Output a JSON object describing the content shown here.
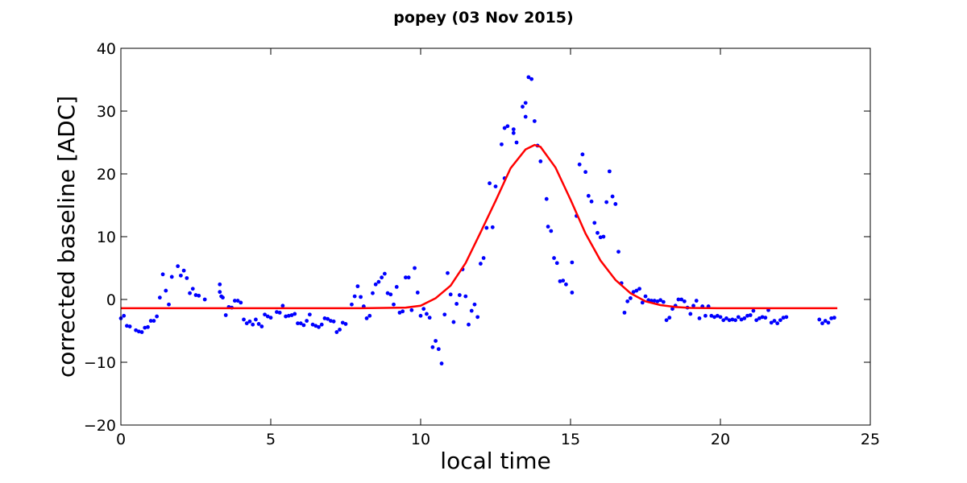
{
  "chart_data": {
    "type": "scatter",
    "title": "popey (03 Nov 2015)",
    "xlabel": "local time",
    "ylabel": "corrected baseline [ADC]",
    "xlim": [
      0,
      25
    ],
    "ylim": [
      -20,
      40
    ],
    "xticks": [
      0,
      5,
      10,
      15,
      20,
      25
    ],
    "yticks": [
      -20,
      -10,
      0,
      10,
      20,
      30,
      40
    ],
    "xtick_labels": [
      "0",
      "5",
      "10",
      "15",
      "20",
      "25"
    ],
    "ytick_labels": [
      "−20",
      "−10",
      "0",
      "10",
      "20",
      "30",
      "40"
    ],
    "grid": false,
    "series": [
      {
        "kind": "points",
        "color": "#0000ff",
        "points": [
          [
            0.0,
            -3.0
          ],
          [
            0.1,
            -2.6
          ],
          [
            0.2,
            -4.2
          ],
          [
            0.3,
            -4.3
          ],
          [
            0.5,
            -4.9
          ],
          [
            0.6,
            -5.1
          ],
          [
            0.7,
            -5.2
          ],
          [
            0.8,
            -4.5
          ],
          [
            0.9,
            -4.4
          ],
          [
            1.0,
            -3.4
          ],
          [
            1.1,
            -3.4
          ],
          [
            1.2,
            -2.7
          ],
          [
            1.3,
            0.3
          ],
          [
            1.4,
            4.0
          ],
          [
            1.5,
            1.4
          ],
          [
            1.6,
            -0.8
          ],
          [
            1.7,
            3.6
          ],
          [
            1.9,
            5.3
          ],
          [
            2.0,
            3.8
          ],
          [
            2.1,
            4.6
          ],
          [
            2.2,
            3.4
          ],
          [
            2.3,
            1.0
          ],
          [
            2.4,
            1.7
          ],
          [
            2.5,
            0.7
          ],
          [
            2.6,
            0.6
          ],
          [
            2.8,
            0.0
          ],
          [
            3.3,
            2.4
          ],
          [
            3.3,
            1.2
          ],
          [
            3.35,
            0.5
          ],
          [
            3.4,
            0.3
          ],
          [
            3.5,
            -2.5
          ],
          [
            3.6,
            -1.2
          ],
          [
            3.7,
            -1.3
          ],
          [
            3.8,
            -0.2
          ],
          [
            3.9,
            -0.2
          ],
          [
            4.0,
            -0.5
          ],
          [
            4.1,
            -3.2
          ],
          [
            4.2,
            -3.8
          ],
          [
            4.3,
            -3.5
          ],
          [
            4.4,
            -4.0
          ],
          [
            4.5,
            -3.2
          ],
          [
            4.6,
            -3.9
          ],
          [
            4.7,
            -4.3
          ],
          [
            4.8,
            -2.4
          ],
          [
            4.9,
            -2.7
          ],
          [
            5.0,
            -2.9
          ],
          [
            5.2,
            -2.0
          ],
          [
            5.3,
            -2.1
          ],
          [
            5.4,
            -1.0
          ],
          [
            5.5,
            -2.7
          ],
          [
            5.6,
            -2.6
          ],
          [
            5.7,
            -2.5
          ],
          [
            5.8,
            -2.3
          ],
          [
            5.9,
            -3.8
          ],
          [
            6.0,
            -3.8
          ],
          [
            6.1,
            -4.1
          ],
          [
            6.2,
            -3.4
          ],
          [
            6.3,
            -2.4
          ],
          [
            6.4,
            -4.0
          ],
          [
            6.5,
            -4.2
          ],
          [
            6.6,
            -4.4
          ],
          [
            6.7,
            -4.0
          ],
          [
            6.8,
            -3.0
          ],
          [
            6.9,
            -3.1
          ],
          [
            7.0,
            -3.4
          ],
          [
            7.1,
            -3.5
          ],
          [
            7.2,
            -5.2
          ],
          [
            7.3,
            -4.8
          ],
          [
            7.4,
            -3.7
          ],
          [
            7.5,
            -3.9
          ],
          [
            7.7,
            -0.8
          ],
          [
            7.8,
            0.5
          ],
          [
            7.9,
            2.1
          ],
          [
            8.0,
            0.4
          ],
          [
            8.1,
            -1.1
          ],
          [
            8.2,
            -3.0
          ],
          [
            8.3,
            -2.6
          ],
          [
            8.4,
            1.0
          ],
          [
            8.5,
            2.4
          ],
          [
            8.6,
            2.8
          ],
          [
            8.7,
            3.5
          ],
          [
            8.8,
            4.1
          ],
          [
            8.9,
            1.0
          ],
          [
            9.0,
            0.8
          ],
          [
            9.1,
            -0.8
          ],
          [
            9.2,
            2.0
          ],
          [
            9.3,
            -2.1
          ],
          [
            9.4,
            -1.9
          ],
          [
            9.5,
            3.5
          ],
          [
            9.6,
            3.5
          ],
          [
            9.7,
            -1.7
          ],
          [
            9.8,
            5.0
          ],
          [
            9.9,
            1.1
          ],
          [
            10.0,
            -2.6
          ],
          [
            10.1,
            -1.5
          ],
          [
            10.2,
            -2.3
          ],
          [
            10.3,
            -2.9
          ],
          [
            10.4,
            -7.6
          ],
          [
            10.5,
            -6.6
          ],
          [
            10.6,
            -7.9
          ],
          [
            10.7,
            -10.2
          ],
          [
            10.8,
            -2.4
          ],
          [
            10.9,
            4.2
          ],
          [
            11.0,
            0.8
          ],
          [
            11.1,
            -3.6
          ],
          [
            11.2,
            -0.7
          ],
          [
            11.3,
            0.7
          ],
          [
            11.4,
            4.8
          ],
          [
            11.5,
            0.5
          ],
          [
            11.6,
            -4.0
          ],
          [
            11.7,
            -1.8
          ],
          [
            11.8,
            -0.8
          ],
          [
            11.9,
            -2.8
          ],
          [
            12.0,
            5.7
          ],
          [
            12.1,
            6.6
          ],
          [
            12.2,
            11.4
          ],
          [
            12.3,
            18.5
          ],
          [
            12.4,
            11.5
          ],
          [
            12.5,
            18.0
          ],
          [
            12.7,
            24.7
          ],
          [
            12.8,
            19.3
          ],
          [
            12.8,
            27.3
          ],
          [
            12.9,
            27.6
          ],
          [
            13.1,
            27.1
          ],
          [
            13.1,
            26.5
          ],
          [
            13.2,
            25.0
          ],
          [
            13.4,
            30.7
          ],
          [
            13.5,
            29.1
          ],
          [
            13.5,
            31.3
          ],
          [
            13.6,
            35.4
          ],
          [
            13.7,
            35.1
          ],
          [
            13.8,
            28.4
          ],
          [
            13.9,
            24.5
          ],
          [
            14.0,
            22.0
          ],
          [
            14.2,
            16.0
          ],
          [
            14.25,
            11.6
          ],
          [
            14.35,
            10.9
          ],
          [
            14.45,
            6.6
          ],
          [
            14.55,
            5.8
          ],
          [
            14.65,
            2.9
          ],
          [
            14.75,
            3.0
          ],
          [
            14.85,
            2.4
          ],
          [
            15.05,
            1.1
          ],
          [
            15.05,
            5.9
          ],
          [
            15.2,
            13.3
          ],
          [
            15.3,
            21.5
          ],
          [
            15.4,
            23.1
          ],
          [
            15.5,
            20.3
          ],
          [
            15.6,
            16.5
          ],
          [
            15.7,
            15.6
          ],
          [
            15.8,
            12.2
          ],
          [
            15.9,
            10.6
          ],
          [
            16.0,
            9.9
          ],
          [
            16.1,
            10.0
          ],
          [
            16.2,
            15.5
          ],
          [
            16.3,
            20.4
          ],
          [
            16.4,
            16.4
          ],
          [
            16.5,
            15.2
          ],
          [
            16.6,
            7.6
          ],
          [
            16.7,
            2.6
          ],
          [
            16.8,
            -2.1
          ],
          [
            16.9,
            -0.3
          ],
          [
            17.0,
            0.2
          ],
          [
            17.1,
            1.2
          ],
          [
            17.2,
            1.4
          ],
          [
            17.3,
            1.7
          ],
          [
            17.4,
            -0.5
          ],
          [
            17.5,
            0.5
          ],
          [
            17.6,
            -0.1
          ],
          [
            17.7,
            -0.2
          ],
          [
            17.8,
            -0.2
          ],
          [
            17.9,
            -0.3
          ],
          [
            18.0,
            -0.1
          ],
          [
            18.1,
            -0.4
          ],
          [
            18.2,
            -3.3
          ],
          [
            18.3,
            -2.9
          ],
          [
            18.4,
            -1.5
          ],
          [
            18.5,
            -1.0
          ],
          [
            18.6,
            0.0
          ],
          [
            18.7,
            0.0
          ],
          [
            18.8,
            -0.3
          ],
          [
            18.9,
            -1.3
          ],
          [
            19.0,
            -2.3
          ],
          [
            19.1,
            -1.0
          ],
          [
            19.2,
            -0.2
          ],
          [
            19.3,
            -3.0
          ],
          [
            19.4,
            -1.1
          ],
          [
            19.5,
            -2.6
          ],
          [
            19.6,
            -1.1
          ],
          [
            19.7,
            -2.6
          ],
          [
            19.8,
            -2.8
          ],
          [
            19.9,
            -2.6
          ],
          [
            20.0,
            -2.8
          ],
          [
            20.1,
            -3.3
          ],
          [
            20.2,
            -3.0
          ],
          [
            20.3,
            -3.3
          ],
          [
            20.4,
            -3.2
          ],
          [
            20.5,
            -3.3
          ],
          [
            20.6,
            -2.8
          ],
          [
            20.7,
            -3.2
          ],
          [
            20.8,
            -3.0
          ],
          [
            20.9,
            -2.6
          ],
          [
            21.0,
            -2.5
          ],
          [
            21.1,
            -1.8
          ],
          [
            21.2,
            -3.3
          ],
          [
            21.3,
            -3.0
          ],
          [
            21.4,
            -2.8
          ],
          [
            21.5,
            -2.9
          ],
          [
            21.6,
            -1.7
          ],
          [
            21.7,
            -3.7
          ],
          [
            21.8,
            -3.4
          ],
          [
            21.9,
            -3.8
          ],
          [
            22.0,
            -3.3
          ],
          [
            22.1,
            -2.9
          ],
          [
            22.2,
            -2.8
          ],
          [
            23.3,
            -3.2
          ],
          [
            23.4,
            -3.8
          ],
          [
            23.5,
            -3.4
          ],
          [
            23.6,
            -3.7
          ],
          [
            23.7,
            -3.0
          ],
          [
            23.8,
            -2.9
          ]
        ]
      },
      {
        "kind": "line",
        "color": "#ff0000",
        "points": [
          [
            0.0,
            -1.4
          ],
          [
            8.0,
            -1.4
          ],
          [
            9.5,
            -1.3
          ],
          [
            10.0,
            -1.0
          ],
          [
            10.5,
            0.2
          ],
          [
            11.0,
            2.2
          ],
          [
            11.5,
            5.8
          ],
          [
            12.0,
            10.7
          ],
          [
            12.5,
            15.7
          ],
          [
            13.0,
            20.9
          ],
          [
            13.5,
            23.9
          ],
          [
            13.8,
            24.6
          ],
          [
            14.0,
            24.3
          ],
          [
            14.5,
            21.0
          ],
          [
            15.0,
            15.9
          ],
          [
            15.5,
            10.5
          ],
          [
            16.0,
            6.2
          ],
          [
            16.5,
            3.1
          ],
          [
            17.0,
            1.0
          ],
          [
            17.5,
            -0.3
          ],
          [
            18.0,
            -0.9
          ],
          [
            18.5,
            -1.2
          ],
          [
            19.0,
            -1.35
          ],
          [
            20.0,
            -1.4
          ],
          [
            23.9,
            -1.4
          ]
        ]
      }
    ]
  }
}
